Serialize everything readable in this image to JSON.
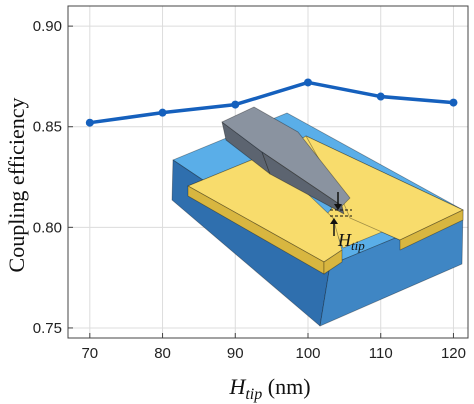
{
  "chart_data": {
    "type": "line",
    "x": [
      70,
      80,
      90,
      100,
      110,
      120
    ],
    "series": [
      {
        "values": [
          0.852,
          0.857,
          0.861,
          0.872,
          0.865,
          0.862
        ]
      }
    ],
    "xlabel": {
      "symbol": "H",
      "subscript": "tip",
      "unit": " (nm)"
    },
    "ylabel": "Coupling efficiency",
    "xlim": [
      67,
      122
    ],
    "ylim": [
      0.745,
      0.91
    ],
    "xticks": [
      70,
      80,
      90,
      100,
      110,
      120
    ],
    "yticks": [
      0.75,
      0.8,
      0.85,
      0.9
    ],
    "grid": true,
    "line_color": "#1560bd",
    "inset": {
      "label_symbol": "H",
      "label_subscript": "tip",
      "colors": {
        "substrate_top": "#5aaee8",
        "substrate_front": "#3f86c4",
        "substrate_side": "#2f6fae",
        "metal_top": "#f8dc6c",
        "metal_side": "#d8b640",
        "tip_top": "#8a93a0",
        "tip_side": "#5c6470"
      }
    }
  }
}
